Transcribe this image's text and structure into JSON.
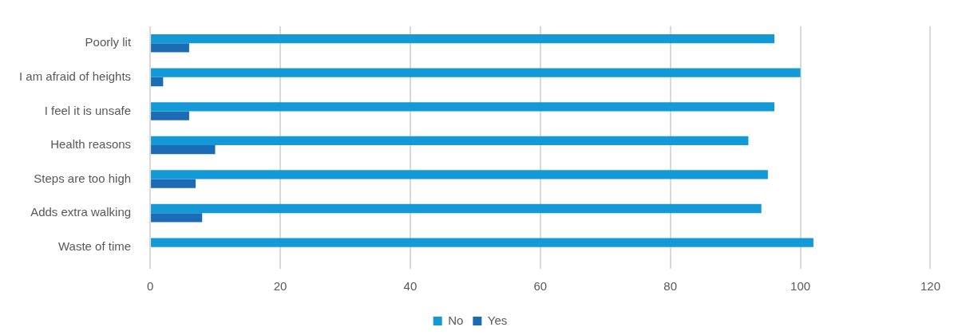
{
  "chart_data": {
    "type": "bar",
    "orientation": "horizontal",
    "categories": [
      "Poorly lit",
      "I am afraid of heights",
      "I feel it is unsafe",
      "Health reasons",
      "Steps are too high",
      "Adds extra walking",
      "Waste of time"
    ],
    "series": [
      {
        "name": "No",
        "color": "#1399d5",
        "values": [
          96,
          100,
          96,
          92,
          95,
          94,
          102
        ]
      },
      {
        "name": "Yes",
        "color": "#1c6bb5",
        "values": [
          6,
          2,
          6,
          10,
          7,
          8,
          0
        ]
      }
    ],
    "xlim": [
      0,
      120
    ],
    "xticks": [
      0,
      20,
      40,
      60,
      80,
      100,
      120
    ],
    "grid": "x",
    "legend": "bottom"
  }
}
